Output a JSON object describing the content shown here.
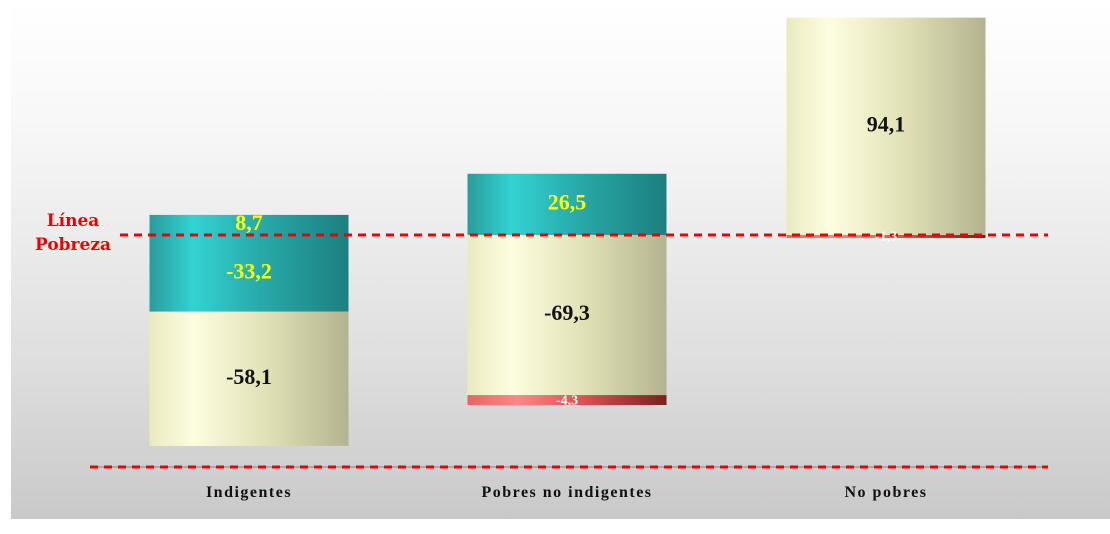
{
  "chart_data": {
    "type": "bar",
    "stacked": "waterfall",
    "categories": [
      "Indigentes",
      "Pobres no indigentes",
      "No pobres"
    ],
    "segments": [
      [
        {
          "value": 8.7,
          "label": "8,7",
          "style": "teal",
          "text_color": "#ffff00"
        },
        {
          "value": -33.2,
          "label": "-33,2",
          "style": "teal",
          "text_color": "#ffff00"
        },
        {
          "value": -58.1,
          "label": "-58,1",
          "style": "cream",
          "text_color": "#111111"
        }
      ],
      [
        {
          "value": 26.5,
          "label": "26,5",
          "style": "teal",
          "text_color": "#ffff00"
        },
        {
          "value": -69.3,
          "label": "-69,3",
          "style": "cream",
          "text_color": "#111111"
        },
        {
          "value": -4.3,
          "label": "-4,3",
          "style": "red",
          "text_color": "#ffffff"
        }
      ],
      [
        {
          "value": 94.1,
          "label": "94,1",
          "style": "cream",
          "text_color": "#111111"
        },
        {
          "value": -1.3,
          "label": "-1,3",
          "style": "red",
          "text_color": "#ffffff"
        }
      ]
    ],
    "reference_line": {
      "label_lines": [
        "Línea",
        "Pobreza"
      ],
      "value": 0,
      "color": "#ee0000"
    },
    "baseline_value": -100,
    "ylim": [
      -100,
      100
    ],
    "legend": "none",
    "grid": false
  },
  "colors": {
    "teal": "#2fb5b5",
    "cream": "#eeeec4",
    "red": "#e05a5a"
  }
}
